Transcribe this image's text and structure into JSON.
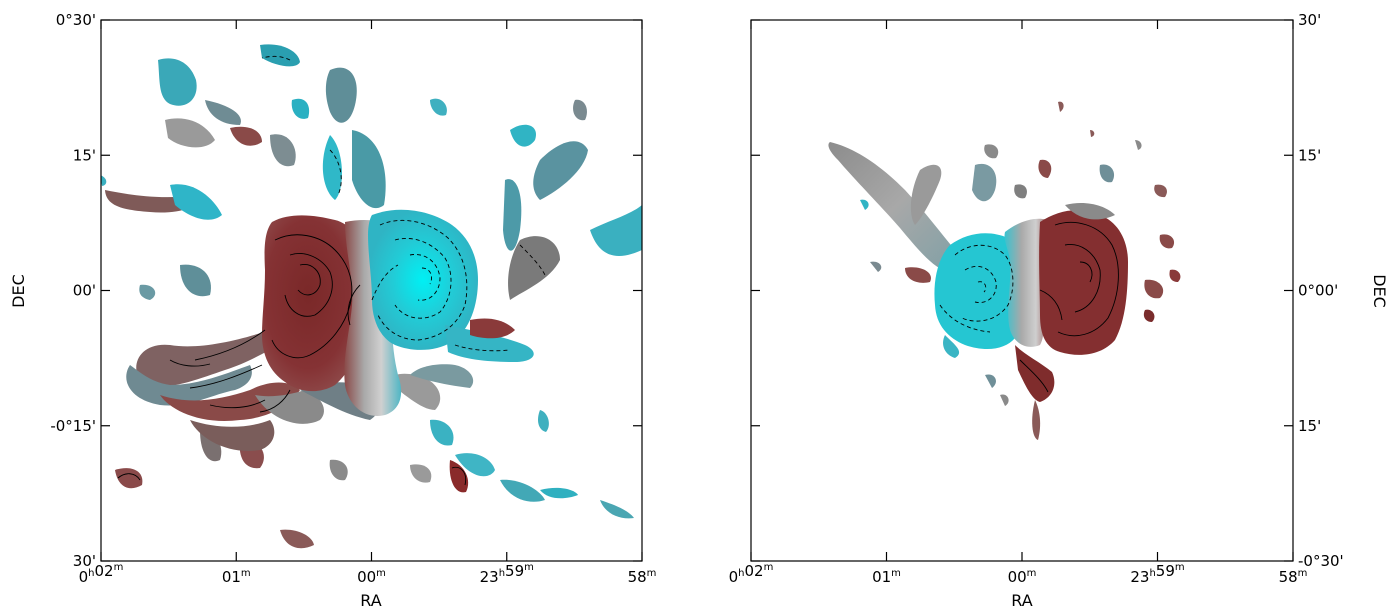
{
  "chart_data": [
    {
      "type": "heatmap",
      "panel": "left",
      "xlabel": "RA",
      "ylabel": "DEC",
      "x_ticks": [
        {
          "pre": "0",
          "sup1": "h",
          "mid": "02",
          "sup2": "m"
        },
        {
          "pre": "01",
          "sup1": "m",
          "mid": "",
          "sup2": ""
        },
        {
          "pre": "00",
          "sup1": "m",
          "mid": "",
          "sup2": ""
        },
        {
          "pre": "23",
          "sup1": "h",
          "mid": "59",
          "sup2": "m"
        },
        {
          "pre": "58",
          "sup1": "m",
          "mid": "",
          "sup2": ""
        }
      ],
      "y_tick_labels": [
        "0°30'",
        "15'",
        "00'",
        "-0°15'",
        "30'"
      ],
      "ra_range_min": [
        2,
        -2
      ],
      "dec_range_arcmin": [
        -30,
        30
      ],
      "grid": false,
      "color_scale": [
        "#00e0ec",
        "#b8b8b8",
        "#8a2a2a"
      ],
      "contours": [
        "solid",
        "dashed"
      ]
    },
    {
      "type": "heatmap",
      "panel": "right",
      "xlabel": "RA",
      "ylabel": "DEC",
      "y_axis_side": "right",
      "x_ticks": [
        {
          "pre": "0",
          "sup1": "h",
          "mid": "02",
          "sup2": "m"
        },
        {
          "pre": "01",
          "sup1": "m",
          "mid": "",
          "sup2": ""
        },
        {
          "pre": "00",
          "sup1": "m",
          "mid": "",
          "sup2": ""
        },
        {
          "pre": "23",
          "sup1": "h",
          "mid": "59",
          "sup2": "m"
        },
        {
          "pre": "58",
          "sup1": "m",
          "mid": "",
          "sup2": ""
        }
      ],
      "y_tick_labels": [
        "30'",
        "15'",
        "0°00'",
        "15'",
        "-0°30'"
      ],
      "ra_range_min": [
        2,
        -2
      ],
      "dec_range_arcmin": [
        -30,
        30
      ],
      "grid": false,
      "color_scale": [
        "#00e0ec",
        "#b8b8b8",
        "#8a2a2a"
      ],
      "contours": [
        "solid",
        "dashed"
      ]
    }
  ]
}
